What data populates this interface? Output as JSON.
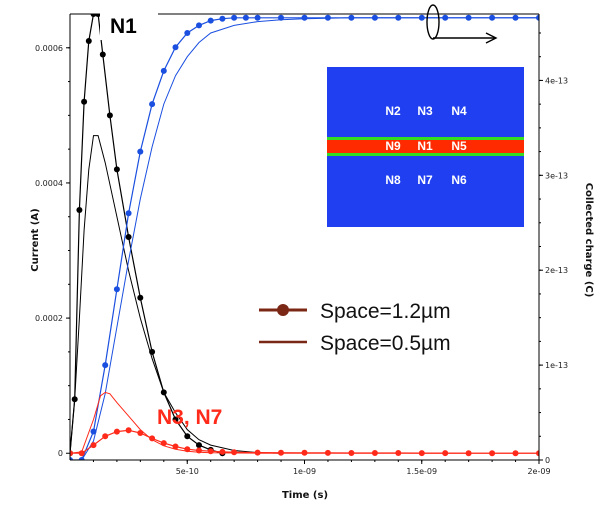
{
  "chart_data": {
    "type": "line",
    "xlabel": "Time (s)",
    "ylabel_left": "Current (A)",
    "ylabel_right": "Collected charge (C)",
    "xlim": [
      0,
      2e-09
    ],
    "ylim_left": [
      -1e-05,
      0.00065
    ],
    "ylim_right": [
      0,
      4.7e-13
    ],
    "x_ticks": [
      {
        "value": 5e-10,
        "label": "5e-10"
      },
      {
        "value": 1e-09,
        "label": "1e-09"
      },
      {
        "value": 1.5e-09,
        "label": "1.5e-09"
      },
      {
        "value": 2e-09,
        "label": "2e-09"
      }
    ],
    "y_left_ticks": [
      {
        "value": 0,
        "label": "0"
      },
      {
        "value": 0.0002,
        "label": "0.0002"
      },
      {
        "value": 0.0004,
        "label": "0.0004"
      },
      {
        "value": 0.0006,
        "label": "0.0006"
      }
    ],
    "y_right_ticks": [
      {
        "value": 0,
        "label": "0"
      },
      {
        "value": 1e-13,
        "label": "1e-13"
      },
      {
        "value": 2e-13,
        "label": "2e-13"
      },
      {
        "value": 3e-13,
        "label": "3e-13"
      },
      {
        "value": 4e-13,
        "label": "4e-13"
      }
    ],
    "series": [
      {
        "axis": "left",
        "color": "#000000",
        "marker": true,
        "x": [
          0,
          2e-11,
          4e-11,
          6e-11,
          8e-11,
          1e-10,
          1.2e-10,
          1.4e-10,
          1.7e-10,
          2e-10,
          2.5e-10,
          3e-10,
          3.5e-10,
          4e-10,
          4.5e-10,
          5e-10,
          5.5e-10,
          6e-10,
          6.5e-10
        ],
        "y": [
          0,
          8e-05,
          0.00036,
          0.00052,
          0.00061,
          0.00065,
          0.00065,
          0.00059,
          0.0005,
          0.00042,
          0.00032,
          0.00023,
          0.00015,
          9e-05,
          5e-05,
          2.5e-05,
          1.2e-05,
          5e-06,
          0
        ]
      },
      {
        "axis": "left",
        "color": "#000000",
        "marker": false,
        "x": [
          0,
          2e-11,
          4e-11,
          6e-11,
          8e-11,
          1e-10,
          1.2e-10,
          1.5e-10,
          2e-10,
          2.5e-10,
          3e-10,
          3.5e-10,
          4e-10,
          4.5e-10,
          5e-10,
          5.5e-10,
          6e-10,
          7e-10,
          8e-10,
          9e-10
        ],
        "y": [
          0,
          8e-05,
          0.0002,
          0.00033,
          0.00042,
          0.00047,
          0.00047,
          0.00043,
          0.00035,
          0.00027,
          0.0002,
          0.00014,
          9e-05,
          6e-05,
          3.5e-05,
          2e-05,
          1.2e-05,
          4e-06,
          1e-06,
          0
        ]
      },
      {
        "axis": "right",
        "color": "#1a4fe0",
        "marker": true,
        "x": [
          0,
          5e-11,
          1e-10,
          1.5e-10,
          2e-10,
          2.5e-10,
          3e-10,
          3.5e-10,
          4e-10,
          4.5e-10,
          5e-10,
          5.5e-10,
          6e-10,
          6.5e-10,
          7e-10,
          7.5e-10,
          8e-10,
          9e-10,
          1e-09,
          1.1e-09,
          1.2e-09,
          1.3e-09,
          1.4e-09,
          1.5e-09,
          1.6e-09,
          1.7e-09,
          1.8e-09,
          1.9e-09,
          2e-09
        ],
        "y": [
          0,
          0,
          3e-14,
          1e-13,
          1.8e-13,
          2.6e-13,
          3.25e-13,
          3.75e-13,
          4.1e-13,
          4.35e-13,
          4.5e-13,
          4.58e-13,
          4.63e-13,
          4.65e-13,
          4.66e-13,
          4.66e-13,
          4.66e-13,
          4.66e-13,
          4.66e-13,
          4.66e-13,
          4.66e-13,
          4.66e-13,
          4.66e-13,
          4.66e-13,
          4.66e-13,
          4.66e-13,
          4.66e-13,
          4.66e-13,
          4.66e-13
        ]
      },
      {
        "axis": "right",
        "color": "#1a4fe0",
        "marker": false,
        "x": [
          0,
          5e-11,
          1e-10,
          1.5e-10,
          2e-10,
          2.5e-10,
          3e-10,
          3.5e-10,
          4e-10,
          4.5e-10,
          5e-10,
          5.5e-10,
          6e-10,
          7e-10,
          8e-10,
          9e-10,
          1e-09,
          1.2e-09,
          1.4e-09,
          1.6e-09,
          1.8e-09,
          2e-09
        ],
        "y": [
          0,
          0,
          2e-14,
          7e-14,
          1.4e-13,
          2.1e-13,
          2.75e-13,
          3.3e-13,
          3.75e-13,
          4.05e-13,
          4.25e-13,
          4.4e-13,
          4.5e-13,
          4.58e-13,
          4.62e-13,
          4.64e-13,
          4.65e-13,
          4.66e-13,
          4.66e-13,
          4.66e-13,
          4.66e-13,
          4.66e-13
        ]
      },
      {
        "axis": "left",
        "color": "#ff2a1a",
        "marker": true,
        "x": [
          0,
          5e-11,
          1e-10,
          1.5e-10,
          2e-10,
          2.5e-10,
          3e-10,
          3.5e-10,
          4e-10,
          4.5e-10,
          5e-10,
          5.5e-10,
          6e-10,
          6.5e-10,
          7e-10,
          8e-10,
          9e-10,
          1e-09,
          1.1e-09,
          1.2e-09,
          1.3e-09,
          1.4e-09,
          1.5e-09,
          1.6e-09,
          1.7e-09,
          1.8e-09,
          1.9e-09,
          2e-09
        ],
        "y": [
          0,
          0,
          1.2e-05,
          2.5e-05,
          3.2e-05,
          3.4e-05,
          3e-05,
          2.2e-05,
          1.5e-05,
          1e-05,
          6e-06,
          4e-06,
          3e-06,
          2e-06,
          1.5e-06,
          1e-06,
          8e-07,
          6e-07,
          5e-07,
          4e-07,
          3e-07,
          3e-07,
          2e-07,
          2e-07,
          1e-07,
          1e-07,
          1e-07,
          1e-07
        ]
      },
      {
        "axis": "left",
        "color": "#ff2a1a",
        "marker": false,
        "x": [
          0,
          5e-11,
          1e-10,
          1.3e-10,
          1.5e-10,
          1.7e-10,
          2e-10,
          2.5e-10,
          3e-10,
          3.5e-10,
          4e-10,
          4.5e-10,
          5e-10,
          5.5e-10,
          6e-10,
          7e-10,
          8e-10,
          1e-09,
          1.5e-09,
          2e-09
        ],
        "y": [
          0,
          2e-06,
          5e-05,
          8.5e-05,
          9e-05,
          8.8e-05,
          7.5e-05,
          5.5e-05,
          3.5e-05,
          2e-05,
          1.1e-05,
          6e-06,
          3e-06,
          1.5e-06,
          8e-07,
          3e-07,
          1e-07,
          0,
          0,
          0
        ]
      }
    ],
    "legend": [
      {
        "label": "Space=1.2µm",
        "marker": true
      },
      {
        "label": "Space=0.5µm",
        "marker": false
      }
    ],
    "annotations": {
      "n1": "N1",
      "n3n7": "N3, N7"
    }
  },
  "inset": {
    "rows": [
      [
        "N2",
        "N3",
        "N4"
      ],
      [
        "N9",
        "N1",
        "N5"
      ],
      [
        "N8",
        "N7",
        "N6"
      ]
    ],
    "colors": {
      "substrate": "#1f3ff0",
      "active": "#ff2a00",
      "edge": "#33dd22"
    }
  },
  "colors": {
    "legend_line": "#7b2716",
    "legend_marker": "#7b2716"
  }
}
